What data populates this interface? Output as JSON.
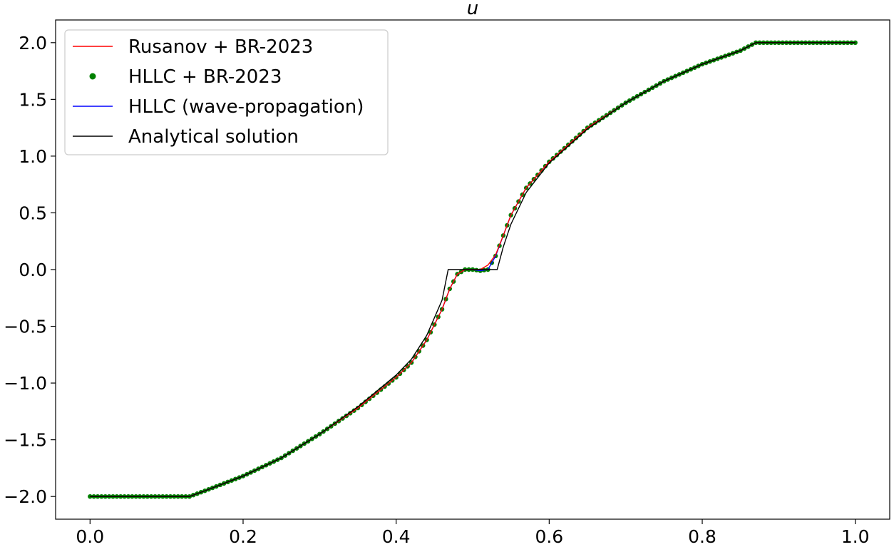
{
  "chart_data": {
    "type": "line",
    "title": "u",
    "xlabel": "",
    "ylabel": "",
    "xlim": [
      -0.045,
      1.045
    ],
    "ylim": [
      -2.2,
      2.2
    ],
    "xticks": [
      0.0,
      0.2,
      0.4,
      0.6,
      0.8,
      1.0
    ],
    "xtick_labels": [
      "0.0",
      "0.2",
      "0.4",
      "0.6",
      "0.8",
      "1.0"
    ],
    "yticks": [
      -2.0,
      -1.5,
      -1.0,
      -0.5,
      0.0,
      0.5,
      1.0,
      1.5,
      2.0
    ],
    "ytick_labels": [
      "−2.0",
      "−1.5",
      "−1.0",
      "−0.5",
      "0.0",
      "0.5",
      "1.0",
      "1.5",
      "2.0"
    ],
    "grid": false,
    "legend_position": "top-left",
    "series": [
      {
        "name": "Rusanov + BR-2023",
        "style": "line",
        "color": "#ff0000",
        "points": [
          [
            0.0,
            -2.0
          ],
          [
            0.13,
            -2.0
          ],
          [
            0.15,
            -1.95
          ],
          [
            0.2,
            -1.82
          ],
          [
            0.25,
            -1.66
          ],
          [
            0.3,
            -1.45
          ],
          [
            0.35,
            -1.22
          ],
          [
            0.4,
            -0.95
          ],
          [
            0.42,
            -0.82
          ],
          [
            0.44,
            -0.62
          ],
          [
            0.46,
            -0.35
          ],
          [
            0.47,
            -0.17
          ],
          [
            0.48,
            -0.04
          ],
          [
            0.49,
            0.0
          ],
          [
            0.5,
            0.0
          ],
          [
            0.51,
            0.0
          ],
          [
            0.52,
            0.04
          ],
          [
            0.53,
            0.13
          ],
          [
            0.54,
            0.3
          ],
          [
            0.55,
            0.48
          ],
          [
            0.57,
            0.72
          ],
          [
            0.6,
            0.95
          ],
          [
            0.65,
            1.25
          ],
          [
            0.7,
            1.47
          ],
          [
            0.75,
            1.66
          ],
          [
            0.8,
            1.81
          ],
          [
            0.85,
            1.93
          ],
          [
            0.87,
            2.0
          ],
          [
            1.0,
            2.0
          ]
        ]
      },
      {
        "name": "HLLC + BR-2023",
        "style": "markers",
        "color": "#008000",
        "points": [
          [
            0.0,
            -2.0
          ],
          [
            0.13,
            -2.0
          ],
          [
            0.15,
            -1.95
          ],
          [
            0.2,
            -1.82
          ],
          [
            0.25,
            -1.66
          ],
          [
            0.3,
            -1.45
          ],
          [
            0.35,
            -1.22
          ],
          [
            0.4,
            -0.95
          ],
          [
            0.42,
            -0.82
          ],
          [
            0.44,
            -0.62
          ],
          [
            0.46,
            -0.35
          ],
          [
            0.47,
            -0.17
          ],
          [
            0.48,
            -0.04
          ],
          [
            0.49,
            0.0
          ],
          [
            0.5,
            0.0
          ],
          [
            0.51,
            -0.01
          ],
          [
            0.52,
            0.0
          ],
          [
            0.53,
            0.12
          ],
          [
            0.54,
            0.3
          ],
          [
            0.55,
            0.48
          ],
          [
            0.57,
            0.72
          ],
          [
            0.6,
            0.95
          ],
          [
            0.65,
            1.25
          ],
          [
            0.7,
            1.47
          ],
          [
            0.75,
            1.66
          ],
          [
            0.8,
            1.81
          ],
          [
            0.85,
            1.93
          ],
          [
            0.87,
            2.0
          ],
          [
            1.0,
            2.0
          ]
        ]
      },
      {
        "name": "HLLC (wave-propagation)",
        "style": "line",
        "color": "#0000ff",
        "points": [
          [
            0.0,
            -2.0
          ],
          [
            0.13,
            -2.0
          ],
          [
            0.15,
            -1.95
          ],
          [
            0.2,
            -1.82
          ],
          [
            0.25,
            -1.66
          ],
          [
            0.3,
            -1.45
          ],
          [
            0.35,
            -1.22
          ],
          [
            0.4,
            -0.95
          ],
          [
            0.42,
            -0.82
          ],
          [
            0.44,
            -0.62
          ],
          [
            0.46,
            -0.35
          ],
          [
            0.47,
            -0.17
          ],
          [
            0.48,
            -0.04
          ],
          [
            0.49,
            0.0
          ],
          [
            0.5,
            0.0
          ],
          [
            0.51,
            -0.01
          ],
          [
            0.52,
            0.0
          ],
          [
            0.53,
            0.12
          ],
          [
            0.54,
            0.3
          ],
          [
            0.55,
            0.48
          ],
          [
            0.57,
            0.72
          ],
          [
            0.6,
            0.95
          ],
          [
            0.65,
            1.25
          ],
          [
            0.7,
            1.47
          ],
          [
            0.75,
            1.66
          ],
          [
            0.8,
            1.81
          ],
          [
            0.85,
            1.93
          ],
          [
            0.87,
            2.0
          ],
          [
            1.0,
            2.0
          ]
        ]
      },
      {
        "name": "Analytical solution",
        "style": "line",
        "color": "#000000",
        "points": [
          [
            0.0,
            -2.0
          ],
          [
            0.13,
            -2.0
          ],
          [
            0.15,
            -1.95
          ],
          [
            0.2,
            -1.82
          ],
          [
            0.25,
            -1.66
          ],
          [
            0.3,
            -1.45
          ],
          [
            0.35,
            -1.21
          ],
          [
            0.4,
            -0.93
          ],
          [
            0.42,
            -0.79
          ],
          [
            0.44,
            -0.58
          ],
          [
            0.46,
            -0.27
          ],
          [
            0.468,
            0.0
          ],
          [
            0.532,
            0.0
          ],
          [
            0.54,
            0.2
          ],
          [
            0.55,
            0.4
          ],
          [
            0.57,
            0.68
          ],
          [
            0.6,
            0.94
          ],
          [
            0.65,
            1.24
          ],
          [
            0.7,
            1.47
          ],
          [
            0.75,
            1.66
          ],
          [
            0.8,
            1.81
          ],
          [
            0.85,
            1.93
          ],
          [
            0.87,
            2.0
          ],
          [
            1.0,
            2.0
          ]
        ]
      }
    ]
  }
}
